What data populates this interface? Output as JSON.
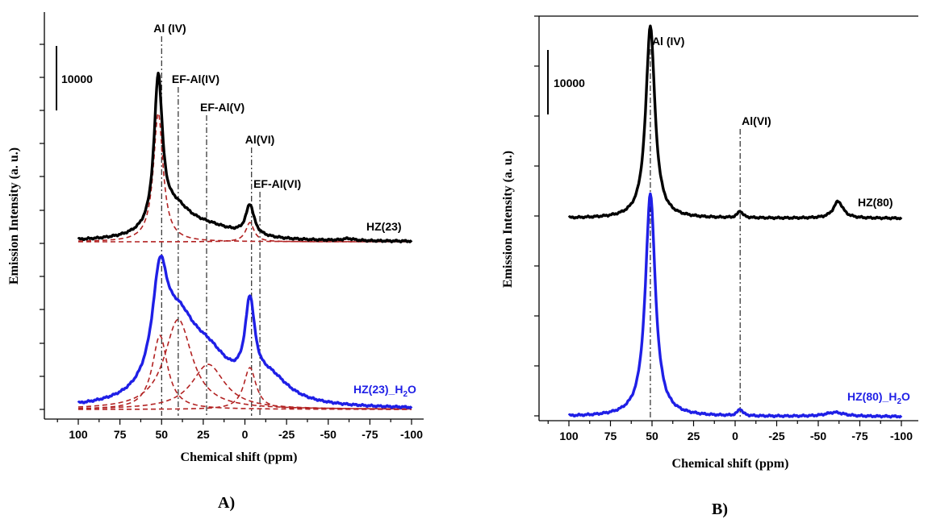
{
  "chart_data": [
    {
      "panel": "A)",
      "type": "line",
      "xlabel": "Chemical shift (ppm)",
      "ylabel": "Emission Intensity (a. u.)",
      "xlim": [
        115,
        -115
      ],
      "x_reversed": true,
      "x_ticks": [
        100,
        75,
        50,
        25,
        0,
        -25,
        -50,
        -75,
        -100
      ],
      "x_tick_labels": [
        "100",
        "75",
        "50",
        "25",
        "0",
        "-25",
        "-50",
        "-75",
        "-100"
      ],
      "scale_bar_label": "10000",
      "annotations": [
        {
          "label": "Al (IV)",
          "x": 50
        },
        {
          "label": "EF-Al(IV)",
          "x": 40
        },
        {
          "label": "EF-Al(V)",
          "x": 23
        },
        {
          "label": "Al(VI)",
          "x": -4
        },
        {
          "label": "EF-Al(VI)",
          "x": -9
        }
      ],
      "series": [
        {
          "name": "HZ(23)",
          "color": "#000000",
          "peaks": [
            [
              52,
              0.44,
              3.0
            ],
            [
              42,
              0.08,
              12
            ],
            [
              22,
              0.035,
              22
            ],
            [
              -3,
              0.09,
              3.0
            ],
            [
              -62,
              0.006,
              4
            ]
          ],
          "baseline": 0.0
        },
        {
          "name": "HZ(23)_H2O",
          "color": "#1f1fe6",
          "peaks": [
            [
              51,
              0.3,
              5.5
            ],
            [
              40,
              0.2,
              13
            ],
            [
              22,
              0.12,
              17
            ],
            [
              -3,
              0.24,
              3.5
            ],
            [
              -15,
              0.07,
              14
            ]
          ],
          "baseline": 0.0
        }
      ],
      "fit_components": [
        {
          "series": "HZ(23)",
          "peaks": [
            [
              52,
              0.4,
              3.5
            ],
            [
              -3,
              0.06,
              3.0
            ]
          ]
        },
        {
          "series": "HZ(23)_H2O",
          "peaks": [
            [
              51,
              0.23,
              5.5
            ],
            [
              40,
              0.28,
              10
            ],
            [
              22,
              0.14,
              12
            ],
            [
              -3,
              0.13,
              4.5
            ]
          ]
        }
      ]
    },
    {
      "panel": "B)",
      "type": "line",
      "xlabel": "Chemical shift (ppm)",
      "ylabel": "Emission Intensity (a. u.)",
      "xlim": [
        115,
        -115
      ],
      "x_reversed": true,
      "x_ticks": [
        100,
        75,
        50,
        25,
        0,
        -25,
        -50,
        -75,
        -100
      ],
      "x_tick_labels": [
        "100",
        "75",
        "50",
        "25",
        "0",
        "-25",
        "-50",
        "-75",
        "-100"
      ],
      "scale_bar_label": "10000",
      "annotations": [
        {
          "label": "Al (IV)",
          "x": 51
        },
        {
          "label": "Al(VI)",
          "x": -3
        }
      ],
      "series": [
        {
          "name": "HZ(80)",
          "color": "#000000",
          "peaks": [
            [
              51,
              0.57,
              3.3
            ],
            [
              -3,
              0.02,
              1.8
            ],
            [
              -62,
              0.05,
              3.5
            ]
          ],
          "baseline": 0.0
        },
        {
          "name": "HZ(80)_H2O",
          "color": "#1f1fe6",
          "peaks": [
            [
              51,
              0.66,
              3.6
            ],
            [
              -3,
              0.02,
              1.8
            ],
            [
              -60,
              0.012,
              7
            ]
          ],
          "baseline": 0.0
        }
      ]
    }
  ],
  "labels": {
    "a_series1": "HZ(23)",
    "a_series2_main": "HZ(23)_H",
    "a_series2_sub": "2",
    "a_series2_end": "O",
    "b_series1": "HZ(80)",
    "b_series2_main": "HZ(80)_H",
    "b_series2_sub": "2",
    "b_series2_end": "O"
  }
}
